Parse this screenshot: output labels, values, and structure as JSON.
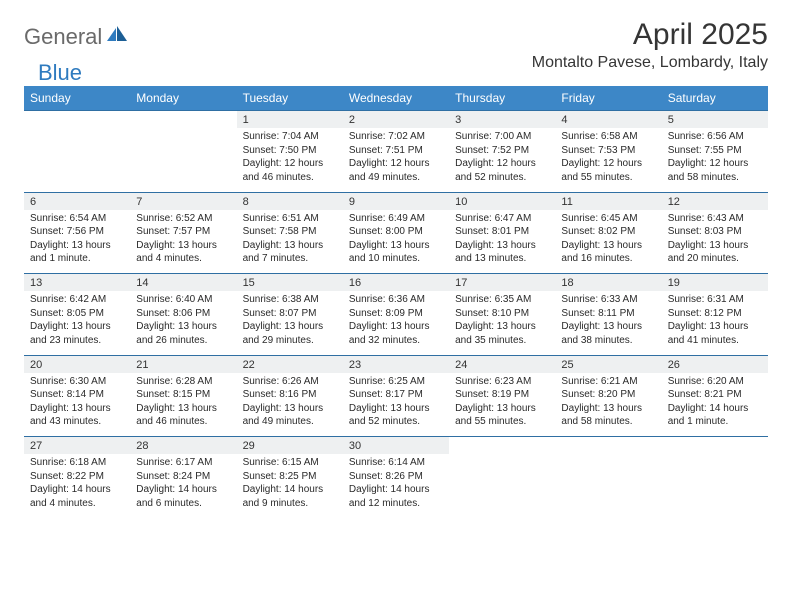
{
  "logo": {
    "word1": "General",
    "word2": "Blue"
  },
  "title": "April 2025",
  "location": "Montalto Pavese, Lombardy, Italy",
  "colors": {
    "header_bg": "#3d87c7",
    "header_text": "#ffffff",
    "daynum_bg": "#eef0f1",
    "row_divider": "#2f6fa3",
    "logo_gray": "#6a6a6a",
    "logo_blue": "#2f7bbf",
    "text": "#2a2a2a",
    "bg": "#ffffff"
  },
  "fonts": {
    "title_size": 30,
    "location_size": 16,
    "weekday_size": 12,
    "daynum_size": 11,
    "body_size": 10
  },
  "weekdays": [
    "Sunday",
    "Monday",
    "Tuesday",
    "Wednesday",
    "Thursday",
    "Friday",
    "Saturday"
  ],
  "weeks": [
    [
      null,
      null,
      {
        "n": "1",
        "sunrise": "7:04 AM",
        "sunset": "7:50 PM",
        "daylight": "12 hours and 46 minutes."
      },
      {
        "n": "2",
        "sunrise": "7:02 AM",
        "sunset": "7:51 PM",
        "daylight": "12 hours and 49 minutes."
      },
      {
        "n": "3",
        "sunrise": "7:00 AM",
        "sunset": "7:52 PM",
        "daylight": "12 hours and 52 minutes."
      },
      {
        "n": "4",
        "sunrise": "6:58 AM",
        "sunset": "7:53 PM",
        "daylight": "12 hours and 55 minutes."
      },
      {
        "n": "5",
        "sunrise": "6:56 AM",
        "sunset": "7:55 PM",
        "daylight": "12 hours and 58 minutes."
      }
    ],
    [
      {
        "n": "6",
        "sunrise": "6:54 AM",
        "sunset": "7:56 PM",
        "daylight": "13 hours and 1 minute."
      },
      {
        "n": "7",
        "sunrise": "6:52 AM",
        "sunset": "7:57 PM",
        "daylight": "13 hours and 4 minutes."
      },
      {
        "n": "8",
        "sunrise": "6:51 AM",
        "sunset": "7:58 PM",
        "daylight": "13 hours and 7 minutes."
      },
      {
        "n": "9",
        "sunrise": "6:49 AM",
        "sunset": "8:00 PM",
        "daylight": "13 hours and 10 minutes."
      },
      {
        "n": "10",
        "sunrise": "6:47 AM",
        "sunset": "8:01 PM",
        "daylight": "13 hours and 13 minutes."
      },
      {
        "n": "11",
        "sunrise": "6:45 AM",
        "sunset": "8:02 PM",
        "daylight": "13 hours and 16 minutes."
      },
      {
        "n": "12",
        "sunrise": "6:43 AM",
        "sunset": "8:03 PM",
        "daylight": "13 hours and 20 minutes."
      }
    ],
    [
      {
        "n": "13",
        "sunrise": "6:42 AM",
        "sunset": "8:05 PM",
        "daylight": "13 hours and 23 minutes."
      },
      {
        "n": "14",
        "sunrise": "6:40 AM",
        "sunset": "8:06 PM",
        "daylight": "13 hours and 26 minutes."
      },
      {
        "n": "15",
        "sunrise": "6:38 AM",
        "sunset": "8:07 PM",
        "daylight": "13 hours and 29 minutes."
      },
      {
        "n": "16",
        "sunrise": "6:36 AM",
        "sunset": "8:09 PM",
        "daylight": "13 hours and 32 minutes."
      },
      {
        "n": "17",
        "sunrise": "6:35 AM",
        "sunset": "8:10 PM",
        "daylight": "13 hours and 35 minutes."
      },
      {
        "n": "18",
        "sunrise": "6:33 AM",
        "sunset": "8:11 PM",
        "daylight": "13 hours and 38 minutes."
      },
      {
        "n": "19",
        "sunrise": "6:31 AM",
        "sunset": "8:12 PM",
        "daylight": "13 hours and 41 minutes."
      }
    ],
    [
      {
        "n": "20",
        "sunrise": "6:30 AM",
        "sunset": "8:14 PM",
        "daylight": "13 hours and 43 minutes."
      },
      {
        "n": "21",
        "sunrise": "6:28 AM",
        "sunset": "8:15 PM",
        "daylight": "13 hours and 46 minutes."
      },
      {
        "n": "22",
        "sunrise": "6:26 AM",
        "sunset": "8:16 PM",
        "daylight": "13 hours and 49 minutes."
      },
      {
        "n": "23",
        "sunrise": "6:25 AM",
        "sunset": "8:17 PM",
        "daylight": "13 hours and 52 minutes."
      },
      {
        "n": "24",
        "sunrise": "6:23 AM",
        "sunset": "8:19 PM",
        "daylight": "13 hours and 55 minutes."
      },
      {
        "n": "25",
        "sunrise": "6:21 AM",
        "sunset": "8:20 PM",
        "daylight": "13 hours and 58 minutes."
      },
      {
        "n": "26",
        "sunrise": "6:20 AM",
        "sunset": "8:21 PM",
        "daylight": "14 hours and 1 minute."
      }
    ],
    [
      {
        "n": "27",
        "sunrise": "6:18 AM",
        "sunset": "8:22 PM",
        "daylight": "14 hours and 4 minutes."
      },
      {
        "n": "28",
        "sunrise": "6:17 AM",
        "sunset": "8:24 PM",
        "daylight": "14 hours and 6 minutes."
      },
      {
        "n": "29",
        "sunrise": "6:15 AM",
        "sunset": "8:25 PM",
        "daylight": "14 hours and 9 minutes."
      },
      {
        "n": "30",
        "sunrise": "6:14 AM",
        "sunset": "8:26 PM",
        "daylight": "14 hours and 12 minutes."
      },
      null,
      null,
      null
    ]
  ],
  "labels": {
    "sunrise": "Sunrise: ",
    "sunset": "Sunset: ",
    "daylight": "Daylight: "
  }
}
